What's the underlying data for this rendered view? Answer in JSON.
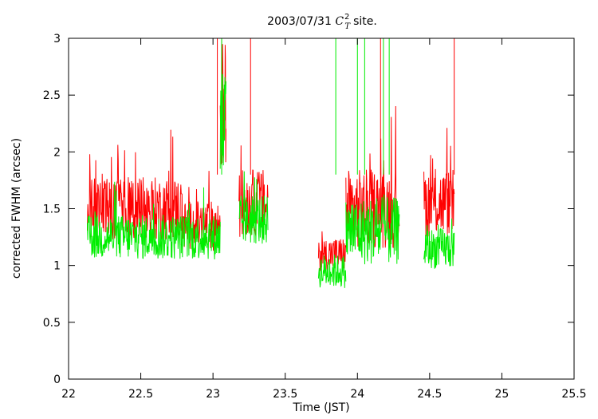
{
  "chart_data": {
    "type": "line",
    "title": {
      "date": "2003/07/31",
      "symbol": "C",
      "superscript": "2",
      "subscript": "T",
      "suffix": "site."
    },
    "xlabel": "Time (JST)",
    "ylabel": "corrected FWHM (arcsec)",
    "xlim": [
      22,
      25.5
    ],
    "ylim": [
      0,
      3
    ],
    "xticks": [
      "22",
      "22.5",
      "23",
      "23.5",
      "24",
      "24.5",
      "25",
      "25.5"
    ],
    "yticks": [
      "0",
      "0.5",
      "1",
      "1.5",
      "2",
      "2.5",
      "3"
    ],
    "grid": false,
    "legend": "none",
    "colors": {
      "series_red": "#ff0000",
      "series_green": "#00ee00",
      "frame": "#000000"
    },
    "segments": [
      {
        "x_start": 22.13,
        "x_end": 22.78,
        "red_mean": 1.5,
        "green_mean": 1.25,
        "red_spread": 0.28,
        "green_spread": 0.2
      },
      {
        "x_start": 22.78,
        "x_end": 23.05,
        "red_mean": 1.35,
        "green_mean": 1.25,
        "red_spread": 0.22,
        "green_spread": 0.2
      },
      {
        "x_start": 23.05,
        "x_end": 23.09,
        "red_mean": 2.4,
        "green_mean": 2.2,
        "red_spread": 0.6,
        "green_spread": 0.6
      },
      {
        "x_start": 23.18,
        "x_end": 23.38,
        "red_mean": 1.55,
        "green_mean": 1.4,
        "red_spread": 0.3,
        "green_spread": 0.22
      },
      {
        "x_start": 23.73,
        "x_end": 23.92,
        "red_mean": 1.1,
        "green_mean": 0.95,
        "red_spread": 0.15,
        "green_spread": 0.15
      },
      {
        "x_start": 23.92,
        "x_end": 24.29,
        "red_mean": 1.5,
        "green_mean": 1.3,
        "red_spread": 0.35,
        "green_spread": 0.3
      },
      {
        "x_start": 24.46,
        "x_end": 24.67,
        "red_mean": 1.55,
        "green_mean": 1.15,
        "red_spread": 0.3,
        "green_spread": 0.18
      }
    ],
    "spikes": [
      {
        "x": 23.03,
        "y": 3.0,
        "color": "red"
      },
      {
        "x": 23.06,
        "y": 3.0,
        "color": "green"
      },
      {
        "x": 23.26,
        "y": 3.0,
        "color": "red"
      },
      {
        "x": 23.85,
        "y": 3.0,
        "color": "green"
      },
      {
        "x": 24.0,
        "y": 3.0,
        "color": "green"
      },
      {
        "x": 24.05,
        "y": 3.0,
        "color": "green"
      },
      {
        "x": 24.16,
        "y": 3.0,
        "color": "red"
      },
      {
        "x": 24.18,
        "y": 3.0,
        "color": "green"
      },
      {
        "x": 24.22,
        "y": 3.0,
        "color": "green"
      },
      {
        "x": 24.67,
        "y": 3.0,
        "color": "red"
      }
    ]
  }
}
